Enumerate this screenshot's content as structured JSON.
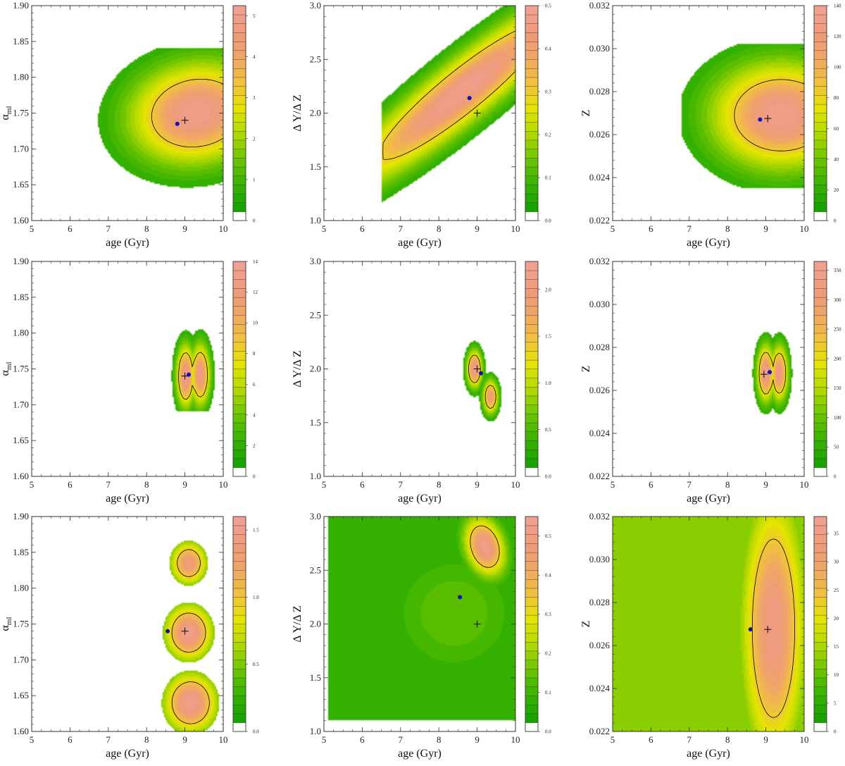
{
  "chart_data": [
    {
      "type": "heatmap",
      "xlabel": "age (Gyr)",
      "ylabel": "αml",
      "ylabel_main": "α",
      "ylabel_sub": "ml",
      "xlim": [
        5,
        10
      ],
      "ylim": [
        1.6,
        1.9
      ],
      "xticks": [
        5,
        6,
        7,
        8,
        9,
        10
      ],
      "yticks": [
        "1.60",
        "1.65",
        "1.70",
        "1.75",
        "1.80",
        "1.85",
        "1.90"
      ],
      "colorbar": {
        "max": 5.25,
        "ticks": [
          "0",
          "1",
          "2",
          "3",
          "4",
          "5"
        ],
        "tick_values": [
          0,
          1,
          2,
          3,
          4,
          5
        ]
      },
      "best_fit_dot": {
        "x": 8.8,
        "y": 1.735
      },
      "true_value_cross": {
        "x": 9.0,
        "y": 1.74
      },
      "peaks": [
        {
          "x": 9.3,
          "y": 1.75,
          "sx": 1.2,
          "sy": 0.048,
          "rot": -0.12,
          "amp": 1.0
        }
      ],
      "contour_level": 0.62,
      "floor": 0.1,
      "mask": {
        "x": [
          6.7,
          10
        ],
        "y": [
          1.645,
          1.84
        ]
      }
    },
    {
      "type": "heatmap",
      "xlabel": "age (Gyr)",
      "ylabel": "Δ Y/Δ Z",
      "xlim": [
        5,
        10
      ],
      "ylim": [
        1.0,
        3.0
      ],
      "xticks": [
        5,
        6,
        7,
        8,
        9,
        10
      ],
      "yticks": [
        "1.0",
        "1.5",
        "2.0",
        "2.5",
        "3.0"
      ],
      "colorbar": {
        "max": 0.5,
        "ticks": [
          "0.0",
          "0.1",
          "0.2",
          "0.3",
          "0.4",
          "0.5"
        ],
        "tick_values": [
          0,
          0.1,
          0.2,
          0.3,
          0.4,
          0.5
        ]
      },
      "best_fit_dot": {
        "x": 8.8,
        "y": 2.14
      },
      "true_value_cross": {
        "x": 9.0,
        "y": 2.0
      },
      "peaks": [
        {
          "x": 8.6,
          "y": 2.2,
          "sx": 2.6,
          "sy": 0.2,
          "rot": -0.62,
          "amp": 1.0
        }
      ],
      "contour_level": 0.6,
      "floor": 0.1,
      "mask": {
        "x": [
          6.5,
          10
        ],
        "y": [
          1.0,
          3.0
        ]
      }
    },
    {
      "type": "heatmap",
      "xlabel": "age (Gyr)",
      "ylabel": "Z",
      "xlim": [
        5,
        10
      ],
      "ylim": [
        0.022,
        0.032
      ],
      "xticks": [
        5,
        6,
        7,
        8,
        9,
        10
      ],
      "yticks": [
        "0.022",
        "0.024",
        "0.026",
        "0.028",
        "0.030",
        "0.032"
      ],
      "colorbar": {
        "max": 140,
        "ticks": [
          "0",
          "20",
          "40",
          "60",
          "80",
          "100",
          "120",
          "140"
        ],
        "tick_values": [
          0,
          20,
          40,
          60,
          80,
          100,
          120,
          140
        ]
      },
      "best_fit_dot": {
        "x": 8.85,
        "y": 0.0267
      },
      "true_value_cross": {
        "x": 9.05,
        "y": 0.02675
      },
      "peaks": [
        {
          "x": 9.4,
          "y": 0.0269,
          "sx": 1.25,
          "sy": 0.0017,
          "rot": 0.0,
          "amp": 1.0
        }
      ],
      "contour_level": 0.62,
      "floor": 0.1,
      "mask": {
        "x": [
          6.8,
          10
        ],
        "y": [
          0.0235,
          0.0302
        ]
      }
    },
    {
      "type": "heatmap",
      "xlabel": "age (Gyr)",
      "ylabel": "αml",
      "ylabel_main": "α",
      "ylabel_sub": "ml",
      "xlim": [
        5,
        10
      ],
      "ylim": [
        1.6,
        1.9
      ],
      "xticks": [
        5,
        6,
        7,
        8,
        9,
        10
      ],
      "yticks": [
        "1.60",
        "1.65",
        "1.70",
        "1.75",
        "1.80",
        "1.85",
        "1.90"
      ],
      "colorbar": {
        "max": 14,
        "ticks": [
          "0",
          "2",
          "4",
          "6",
          "8",
          "10",
          "12",
          "14"
        ],
        "tick_values": [
          0,
          2,
          4,
          6,
          8,
          10,
          12,
          14
        ]
      },
      "best_fit_dot": {
        "x": 9.1,
        "y": 1.742
      },
      "true_value_cross": {
        "x": 9.0,
        "y": 1.74
      },
      "peaks": [
        {
          "x": 9.02,
          "y": 1.74,
          "sx": 0.17,
          "sy": 0.03,
          "rot": 0,
          "amp": 1.0
        },
        {
          "x": 9.4,
          "y": 1.742,
          "sx": 0.18,
          "sy": 0.03,
          "rot": 0,
          "amp": 0.95
        }
      ],
      "contour_level": 0.55,
      "floor": 0.1,
      "mask": {
        "x": [
          7.3,
          10
        ],
        "y": [
          1.69,
          1.805
        ]
      }
    },
    {
      "type": "heatmap",
      "xlabel": "age (Gyr)",
      "ylabel": "Δ Y/Δ Z",
      "xlim": [
        5,
        10
      ],
      "ylim": [
        1.0,
        3.0
      ],
      "xticks": [
        5,
        6,
        7,
        8,
        9,
        10
      ],
      "yticks": [
        "1.0",
        "1.5",
        "2.0",
        "2.5",
        "3.0"
      ],
      "colorbar": {
        "max": 2.3,
        "ticks": [
          "0.0",
          "0.5",
          "1.0",
          "1.5",
          "2.0"
        ],
        "tick_values": [
          0,
          0.5,
          1,
          1.5,
          2
        ]
      },
      "best_fit_dot": {
        "x": 9.1,
        "y": 1.96
      },
      "true_value_cross": {
        "x": 9.0,
        "y": 2.0
      },
      "peaks": [
        {
          "x": 8.93,
          "y": 2.0,
          "sx": 0.14,
          "sy": 0.12,
          "rot": 0,
          "amp": 1.0
        },
        {
          "x": 9.35,
          "y": 1.74,
          "sx": 0.14,
          "sy": 0.11,
          "rot": 0,
          "amp": 0.9
        }
      ],
      "contour_level": 0.55,
      "floor": 0.1,
      "mask": {
        "x": [
          8.2,
          9.9
        ],
        "y": [
          1.3,
          2.55
        ]
      }
    },
    {
      "type": "heatmap",
      "xlabel": "age (Gyr)",
      "ylabel": "Z",
      "xlim": [
        5,
        10
      ],
      "ylim": [
        0.022,
        0.032
      ],
      "xticks": [
        5,
        6,
        7,
        8,
        9,
        10
      ],
      "yticks": [
        "0.022",
        "0.024",
        "0.026",
        "0.028",
        "0.030",
        "0.032"
      ],
      "colorbar": {
        "max": 365,
        "ticks": [
          "0",
          "50",
          "100",
          "150",
          "200",
          "250",
          "300",
          "350"
        ],
        "tick_values": [
          0,
          50,
          100,
          150,
          200,
          250,
          300,
          350
        ]
      },
      "best_fit_dot": {
        "x": 9.1,
        "y": 0.02685
      },
      "true_value_cross": {
        "x": 8.95,
        "y": 0.02675
      },
      "peaks": [
        {
          "x": 9.0,
          "y": 0.0268,
          "sx": 0.16,
          "sy": 0.0009,
          "rot": 0,
          "amp": 1.0
        },
        {
          "x": 9.35,
          "y": 0.0268,
          "sx": 0.16,
          "sy": 0.0009,
          "rot": 0,
          "amp": 0.95
        }
      ],
      "contour_level": 0.55,
      "floor": 0.1,
      "mask": {
        "x": [
          7.6,
          9.75
        ],
        "y": [
          0.0238,
          0.0296
        ]
      }
    },
    {
      "type": "heatmap",
      "xlabel": "age (Gyr)",
      "ylabel": "αml",
      "ylabel_main": "α",
      "ylabel_sub": "ml",
      "xlim": [
        5,
        10
      ],
      "ylim": [
        1.6,
        1.9
      ],
      "xticks": [
        5,
        6,
        7,
        8,
        9,
        10
      ],
      "yticks": [
        "1.60",
        "1.65",
        "1.70",
        "1.75",
        "1.80",
        "1.85",
        "1.90"
      ],
      "colorbar": {
        "max": 1.6,
        "ticks": [
          "0.0",
          "0.5",
          "1.0",
          "1.5"
        ],
        "tick_values": [
          0,
          0.5,
          1,
          1.5
        ]
      },
      "best_fit_dot": {
        "x": 8.55,
        "y": 1.74
      },
      "true_value_cross": {
        "x": 9.0,
        "y": 1.74
      },
      "peaks": [
        {
          "x": 9.1,
          "y": 1.835,
          "sx": 0.35,
          "sy": 0.022,
          "rot": 0,
          "amp": 0.9
        },
        {
          "x": 9.1,
          "y": 1.738,
          "sx": 0.45,
          "sy": 0.028,
          "rot": 0,
          "amp": 1.0
        },
        {
          "x": 9.15,
          "y": 1.64,
          "sx": 0.5,
          "sy": 0.03,
          "rot": 0,
          "amp": 1.0
        }
      ],
      "contour_level": 0.62,
      "floor": 0.32,
      "background": 0.28,
      "mask": {
        "x": [
          5,
          10
        ],
        "y": [
          1.6,
          1.9
        ]
      }
    },
    {
      "type": "heatmap",
      "xlabel": "age (Gyr)",
      "ylabel": "Δ Y/Δ Z",
      "xlim": [
        5,
        10
      ],
      "ylim": [
        1.0,
        3.0
      ],
      "xticks": [
        5,
        6,
        7,
        8,
        9,
        10
      ],
      "yticks": [
        "1.0",
        "1.5",
        "2.0",
        "2.5",
        "3.0"
      ],
      "colorbar": {
        "max": 0.55,
        "ticks": [
          "0.0",
          "0.1",
          "0.2",
          "0.3",
          "0.4",
          "0.5"
        ],
        "tick_values": [
          0,
          0.1,
          0.2,
          0.3,
          0.4,
          0.5
        ]
      },
      "best_fit_dot": {
        "x": 8.55,
        "y": 2.25
      },
      "true_value_cross": {
        "x": 9.0,
        "y": 2.0
      },
      "peaks": [
        {
          "x": 9.2,
          "y": 2.72,
          "sx": 0.35,
          "sy": 0.2,
          "rot": -0.4,
          "amp": 1.0
        },
        {
          "x": 8.4,
          "y": 2.1,
          "sx": 1.3,
          "sy": 0.45,
          "rot": 0,
          "amp": 0.25
        }
      ],
      "contour_level": 0.6,
      "floor": 0.08,
      "background": 0.12,
      "mask": {
        "x": [
          5.1,
          10
        ],
        "y": [
          1.1,
          3.0
        ]
      }
    },
    {
      "type": "heatmap",
      "xlabel": "age (Gyr)",
      "ylabel": "Z",
      "xlim": [
        5,
        10
      ],
      "ylim": [
        0.022,
        0.032
      ],
      "xticks": [
        5,
        6,
        7,
        8,
        9,
        10
      ],
      "yticks": [
        "0.022",
        "0.024",
        "0.026",
        "0.028",
        "0.030",
        "0.032"
      ],
      "colorbar": {
        "max": 38,
        "ticks": [
          "0",
          "5",
          "10",
          "15",
          "20",
          "25",
          "30",
          "35"
        ],
        "tick_values": [
          0,
          5,
          10,
          15,
          20,
          25,
          30,
          35
        ]
      },
      "best_fit_dot": {
        "x": 8.6,
        "y": 0.02675
      },
      "true_value_cross": {
        "x": 9.05,
        "y": 0.02675
      },
      "peaks": [
        {
          "x": 9.2,
          "y": 0.0268,
          "sx": 0.6,
          "sy": 0.0045,
          "rot": 0,
          "amp": 0.95
        },
        {
          "x": 9.2,
          "y": 0.0295,
          "sx": 0.4,
          "sy": 0.0012,
          "rot": 0,
          "amp": 0.6
        }
      ],
      "contour_level": 0.62,
      "floor": 0.05,
      "background": 0.32,
      "mask": {
        "x": [
          5,
          10
        ],
        "y": [
          0.022,
          0.032
        ]
      }
    }
  ],
  "colors": {
    "colormap": [
      "#ffffff",
      "#18a300",
      "#3ab300",
      "#6fc500",
      "#b2d900",
      "#e4e400",
      "#f0c23c",
      "#f0a864",
      "#ee9a7c",
      "#f0a090"
    ],
    "best_fit_dot": "#0a10b8",
    "true_cross": "#000000",
    "contour": "#000000"
  }
}
